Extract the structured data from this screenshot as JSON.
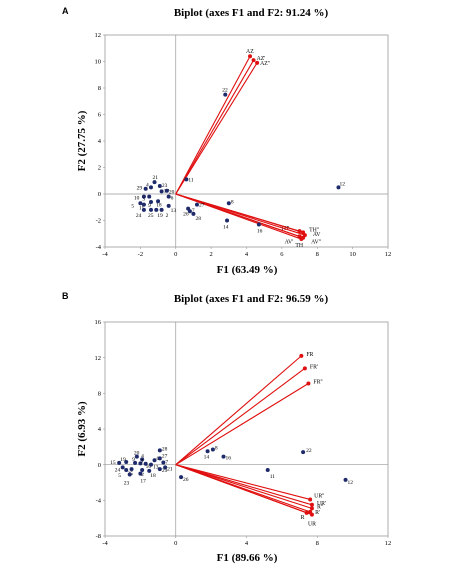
{
  "chart_data": [
    {
      "type": "scatter",
      "panel": "A",
      "title": "Biplot (axes F1 and F2: 91.24 %)",
      "xlabel": "F1 (63.49 %)",
      "ylabel": "F2 (27.75 %)",
      "xlim": [
        -4,
        12
      ],
      "ylim": [
        -4,
        12
      ],
      "xticks": [
        -4,
        -2,
        0,
        2,
        4,
        6,
        8,
        10,
        12
      ],
      "yticks": [
        -4,
        -2,
        0,
        2,
        4,
        6,
        8,
        10,
        12
      ],
      "colors": {
        "points": "#1f2a6b",
        "vectors": "#e01010"
      },
      "points": [
        {
          "label": "22",
          "x": 2.8,
          "y": 7.5
        },
        {
          "label": "12",
          "x": 9.2,
          "y": 0.5
        },
        {
          "label": "11",
          "x": 0.6,
          "y": 1.1
        },
        {
          "label": "21",
          "x": -1.2,
          "y": 0.9
        },
        {
          "label": "29",
          "x": -1.7,
          "y": 0.4
        },
        {
          "label": "4",
          "x": -1.4,
          "y": 0.5
        },
        {
          "label": "23",
          "x": -0.9,
          "y": 0.6
        },
        {
          "label": "17",
          "x": -0.8,
          "y": 0.2
        },
        {
          "label": "20",
          "x": -0.5,
          "y": 0.25
        },
        {
          "label": "10",
          "x": -1.8,
          "y": -0.2
        },
        {
          "label": "3",
          "x": -1.5,
          "y": -0.2
        },
        {
          "label": "6",
          "x": -0.4,
          "y": -0.2
        },
        {
          "label": "18",
          "x": -1.0,
          "y": -0.55
        },
        {
          "label": "5",
          "x": -2.0,
          "y": -0.7
        },
        {
          "label": "15",
          "x": -1.8,
          "y": -0.8
        },
        {
          "label": "9",
          "x": -1.4,
          "y": -0.6
        },
        {
          "label": "24",
          "x": -1.8,
          "y": -1.2
        },
        {
          "label": "25",
          "x": -1.4,
          "y": -1.2
        },
        {
          "label": "19",
          "x": -1.1,
          "y": -1.2
        },
        {
          "label": "2",
          "x": -0.8,
          "y": -1.2
        },
        {
          "label": "13",
          "x": -0.4,
          "y": -0.9
        },
        {
          "label": "26",
          "x": 0.7,
          "y": -1.1
        },
        {
          "label": "27",
          "x": 1.2,
          "y": -0.8
        },
        {
          "label": "28",
          "x": 1.0,
          "y": -1.5
        },
        {
          "label": "7",
          "x": 0.8,
          "y": -1.3
        },
        {
          "label": "8",
          "x": 3.0,
          "y": -0.7
        },
        {
          "label": "14",
          "x": 2.9,
          "y": -2.0
        },
        {
          "label": "16",
          "x": 4.7,
          "y": -2.3
        }
      ],
      "vectors": [
        {
          "label": "AZ",
          "x": 4.2,
          "y": 10.4
        },
        {
          "label": "AZ'",
          "x": 4.4,
          "y": 10.1
        },
        {
          "label": "AZ''",
          "x": 4.6,
          "y": 9.9
        },
        {
          "label": "TH'",
          "x": 7.0,
          "y": -2.8
        },
        {
          "label": "TH''",
          "x": 7.2,
          "y": -2.9
        },
        {
          "label": "AV",
          "x": 7.3,
          "y": -3.1
        },
        {
          "label": "AV'",
          "x": 7.0,
          "y": -3.2
        },
        {
          "label": "AV''",
          "x": 7.2,
          "y": -3.3
        },
        {
          "label": "TH",
          "x": 7.1,
          "y": -3.4
        }
      ]
    },
    {
      "type": "scatter",
      "panel": "B",
      "title": "Biplot (axes F1 and F2: 96.59 %)",
      "xlabel": "F1 (89.66 %)",
      "ylabel": "F2 (6.93 %)",
      "xlim": [
        -4,
        12
      ],
      "ylim": [
        -8,
        16
      ],
      "xticks": [
        -4,
        0,
        4,
        8,
        12
      ],
      "yticks": [
        -8,
        -4,
        0,
        4,
        8,
        12,
        16
      ],
      "colors": {
        "points": "#1f2a6b",
        "vectors": "#e01010"
      },
      "points": [
        {
          "label": "28",
          "x": -0.9,
          "y": 1.6
        },
        {
          "label": "20",
          "x": -2.2,
          "y": 0.9
        },
        {
          "label": "4",
          "x": -1.9,
          "y": 0.6
        },
        {
          "label": "29",
          "x": -0.9,
          "y": -0.5
        },
        {
          "label": "15",
          "x": -3.2,
          "y": 0.2
        },
        {
          "label": "19",
          "x": -2.8,
          "y": 0.3
        },
        {
          "label": "9",
          "x": -2.3,
          "y": 0.2
        },
        {
          "label": "3",
          "x": -2.0,
          "y": 0.15
        },
        {
          "label": "10",
          "x": -1.7,
          "y": 0.1
        },
        {
          "label": "13",
          "x": -1.4,
          "y": 0.0
        },
        {
          "label": "6",
          "x": -1.2,
          "y": 0.5
        },
        {
          "label": "24",
          "x": -3.0,
          "y": -0.3
        },
        {
          "label": "5",
          "x": -2.8,
          "y": -0.6
        },
        {
          "label": "25",
          "x": -2.5,
          "y": -0.5
        },
        {
          "label": "2",
          "x": -1.9,
          "y": -0.6
        },
        {
          "label": "18",
          "x": -1.5,
          "y": -0.7
        },
        {
          "label": "23",
          "x": -2.6,
          "y": -1.1
        },
        {
          "label": "17",
          "x": -2.0,
          "y": -1.0
        },
        {
          "label": "27",
          "x": -0.9,
          "y": 0.7
        },
        {
          "label": "7",
          "x": -0.7,
          "y": 0.25
        },
        {
          "label": "21",
          "x": -0.6,
          "y": -0.3
        },
        {
          "label": "26",
          "x": 0.3,
          "y": -1.4
        },
        {
          "label": "14",
          "x": 1.8,
          "y": 1.5
        },
        {
          "label": "8",
          "x": 2.1,
          "y": 1.7
        },
        {
          "label": "16",
          "x": 2.7,
          "y": 0.9
        },
        {
          "label": "11",
          "x": 5.2,
          "y": -0.6
        },
        {
          "label": "22",
          "x": 7.2,
          "y": 1.4
        },
        {
          "label": "12",
          "x": 9.6,
          "y": -1.7
        }
      ],
      "vectors": [
        {
          "label": "FR",
          "x": 7.1,
          "y": 12.2
        },
        {
          "label": "FR'",
          "x": 7.3,
          "y": 10.8
        },
        {
          "label": "FR''",
          "x": 7.5,
          "y": 9.1
        },
        {
          "label": "UR''",
          "x": 7.6,
          "y": -3.9
        },
        {
          "label": "UR'",
          "x": 7.7,
          "y": -4.5
        },
        {
          "label": "R''",
          "x": 7.7,
          "y": -4.9
        },
        {
          "label": "R'",
          "x": 7.6,
          "y": -5.3
        },
        {
          "label": "R",
          "x": 7.4,
          "y": -5.4
        },
        {
          "label": "UR",
          "x": 7.7,
          "y": -5.6
        }
      ]
    }
  ]
}
